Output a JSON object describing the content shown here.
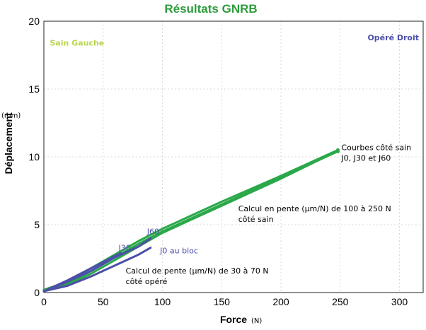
{
  "chart_data": {
    "type": "line",
    "title": "Résultats GNRB",
    "xlabel": "Force",
    "xunit": "(N)",
    "ylabel": "Déplacement",
    "yunit": "(mm)",
    "xlim": [
      0,
      320
    ],
    "ylim": [
      0,
      20
    ],
    "xticks": [
      "0",
      "50",
      "100",
      "150",
      "200",
      "250",
      "300"
    ],
    "yticks": [
      "0",
      "5",
      "10",
      "15",
      "20"
    ],
    "left_label": "Sain Gauche",
    "right_label": "Opéré Droit",
    "colors": {
      "sain": "#2aa84a",
      "opere": "#4b4fa8",
      "title": "#2e9c3c",
      "left_label": "#b8d64a"
    },
    "series": [
      {
        "name": "Sain J0",
        "side": "sain",
        "x": [
          0,
          20,
          40,
          60,
          80,
          100,
          150,
          200,
          248
        ],
        "y": [
          0.1,
          0.7,
          1.6,
          2.6,
          3.6,
          4.5,
          6.5,
          8.5,
          10.4
        ]
      },
      {
        "name": "Sain J30",
        "side": "sain",
        "x": [
          0,
          20,
          40,
          60,
          80,
          100,
          150,
          200,
          248
        ],
        "y": [
          0.1,
          0.6,
          1.4,
          2.4,
          3.4,
          4.4,
          6.4,
          8.4,
          10.45
        ]
      },
      {
        "name": "Sain J60",
        "side": "sain",
        "x": [
          0,
          20,
          40,
          60,
          80,
          100,
          150,
          200,
          248
        ],
        "y": [
          0.2,
          0.8,
          1.8,
          2.8,
          3.8,
          4.7,
          6.7,
          8.6,
          10.5
        ]
      },
      {
        "name": "Opéré J0 au bloc",
        "side": "opere",
        "x": [
          0,
          20,
          40,
          60,
          80,
          90
        ],
        "y": [
          0.1,
          0.5,
          1.2,
          2.0,
          2.8,
          3.3
        ]
      },
      {
        "name": "Opéré J30",
        "side": "opere",
        "x": [
          0,
          20,
          40,
          60,
          65
        ],
        "y": [
          0.1,
          0.9,
          1.8,
          2.7,
          2.9
        ]
      },
      {
        "name": "Opéré J60",
        "side": "opere",
        "x": [
          0,
          20,
          40,
          60,
          80,
          90
        ],
        "y": [
          0.1,
          0.8,
          1.6,
          2.6,
          3.4,
          4.0
        ]
      }
    ],
    "curve_labels": [
      {
        "text": "J60",
        "side": "opere",
        "x": 87,
        "y": 4.3
      },
      {
        "text": "J30",
        "side": "opere",
        "x": 63,
        "y": 3.1
      },
      {
        "text": "J0 au bloc",
        "side": "opere",
        "x": 98,
        "y": 2.9
      }
    ],
    "annotations": [
      {
        "lines": [
          "Courbes côté sain",
          "J0, J30 et J60"
        ],
        "x": 251,
        "y": 10.5
      },
      {
        "lines": [
          "Calcul en pente (µm/N) de 100 à 250 N",
          "côté sain"
        ],
        "x": 164,
        "y": 6.0
      },
      {
        "lines": [
          "Calcul de pente (µm/N) de 30 à 70 N",
          "côté opéré"
        ],
        "x": 69,
        "y": 1.4
      }
    ]
  }
}
